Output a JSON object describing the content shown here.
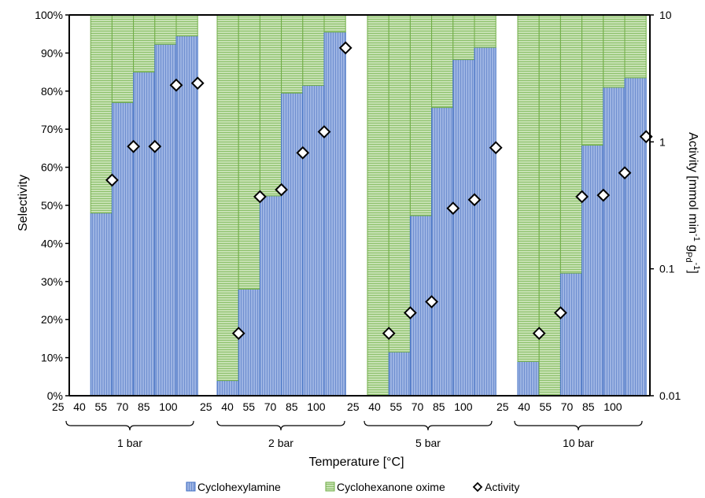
{
  "chart_data": {
    "type": "bar",
    "subtype": "stacked bar with scatter overlay",
    "x_axis_title": "Temperature [°C]",
    "y_left_title": "Selectivity",
    "y_right_title": "Activity [mmol min-1 gPd-1]",
    "y_right_title_parts": {
      "base": "Activity [mmol min",
      "sup1": "-1",
      "mid": " g",
      "sub": "Pd",
      "sup2": "-1",
      "end": "]"
    },
    "y_left_ticks": [
      "0%",
      "10%",
      "20%",
      "30%",
      "40%",
      "50%",
      "60%",
      "70%",
      "80%",
      "90%",
      "100%"
    ],
    "y_left_range": [
      0,
      100
    ],
    "y_right_ticks": [
      "0.01",
      "0.1",
      "1",
      "10"
    ],
    "y_right_range": [
      0.01,
      10
    ],
    "y_right_scale": "log",
    "x_tick_labels_printed": [
      "25",
      "40",
      "55",
      "70",
      "85",
      "100",
      "25",
      "40",
      "55",
      "70",
      "85",
      "100",
      "25",
      "40",
      "55",
      "70",
      "85",
      "100",
      "25",
      "40",
      "55",
      "70",
      "85",
      "100"
    ],
    "x_tick_label_lines": [
      "25   40   55   70   85   100",
      "25   40   55   70   85   100",
      "25   40   55   70   85   100",
      "25   40   55   70   85   100"
    ],
    "colors": {
      "cyclohexylamine": "#8fa9dc",
      "cyclohexylamine_edge": "#4472c4",
      "oxime": "#b6d7a0",
      "oxime_edge": "#70ad47"
    },
    "groups": [
      {
        "label": "1 bar",
        "temperatures": [
          25,
          40,
          55,
          70,
          85,
          100
        ],
        "cyclohexylamine": [
          null,
          48,
          77,
          85,
          92.3,
          94.5
        ],
        "cyclohexanone_oxime": [
          null,
          52,
          23,
          15,
          7.7,
          5.5
        ],
        "activity": [
          null,
          0.5,
          0.92,
          0.92,
          2.8,
          2.9
        ]
      },
      {
        "label": "2 bar",
        "temperatures": [
          25,
          40,
          55,
          70,
          85,
          100
        ],
        "cyclohexylamine": [
          4,
          28,
          52.5,
          79.5,
          81.5,
          95.5
        ],
        "cyclohexanone_oxime": [
          96,
          72,
          47.5,
          20.5,
          18.5,
          4.5
        ],
        "activity": [
          0.031,
          0.37,
          0.42,
          0.82,
          1.2,
          5.5
        ]
      },
      {
        "label": "5 bar",
        "temperatures": [
          25,
          40,
          55,
          70,
          85,
          100
        ],
        "cyclohexylamine": [
          0,
          11.5,
          47.3,
          75.7,
          88.3,
          91.5
        ],
        "cyclohexanone_oxime": [
          100,
          88.5,
          52.7,
          24.3,
          11.7,
          8.5
        ],
        "activity": [
          0.031,
          0.045,
          0.055,
          0.3,
          0.35,
          0.9
        ]
      },
      {
        "label": "10 bar",
        "temperatures": [
          25,
          40,
          55,
          70,
          85,
          100
        ],
        "cyclohexylamine": [
          9,
          0,
          32.2,
          65.8,
          81,
          83.5
        ],
        "cyclohexanone_oxime": [
          91,
          100,
          67.8,
          34.2,
          19,
          16.5
        ],
        "activity": [
          0.031,
          0.045,
          0.37,
          0.38,
          0.57,
          1.1
        ]
      }
    ],
    "legend": {
      "position": "bottom",
      "entries": [
        {
          "label": "Cyclohexylamine",
          "marker": "bar-blue"
        },
        {
          "label": "Cyclohexanone oxime",
          "marker": "bar-green"
        },
        {
          "label": "Activity",
          "marker": "diamond"
        }
      ]
    },
    "grid": false
  }
}
